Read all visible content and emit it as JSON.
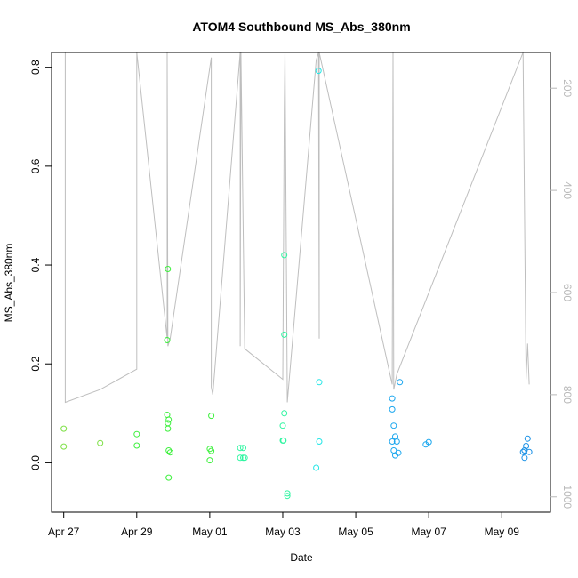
{
  "chart_data": {
    "type": "scatter",
    "title": "ATOM4 Southbound MS_Abs_380nm",
    "xlabel": "Date",
    "ylabel": "MS_Abs_380nm",
    "x_ticks": [
      "Apr 27",
      "Apr 29",
      "May 01",
      "May 03",
      "May 05",
      "May 07",
      "May 09"
    ],
    "y_ticks": [
      "0.0",
      "0.2",
      "0.4",
      "0.6",
      "0.8"
    ],
    "y2_ticks": [
      "200",
      "400",
      "600",
      "800",
      "1000"
    ],
    "xlim": [
      "2016-04-26 16:00",
      "2016-05-10 08:00"
    ],
    "ylim": [
      -0.1,
      0.83
    ],
    "y2lim": [
      1030,
      130
    ],
    "y2_reversed": true,
    "grid": false,
    "legend": "none",
    "colors": {
      "altitude_line": "#bebebe",
      "right_axis_text": "#b8b8b8",
      "point_palette": [
        "#7de045",
        "#3ef03e",
        "#2ef5a0",
        "#22e6e6",
        "#1aa6ee",
        "#1890e6"
      ]
    },
    "series": [
      {
        "values": [
          {
            "x": "2016-04-27 00:00",
            "y": 0.069
          },
          {
            "x": "2016-04-27 00:00",
            "y": 0.033
          },
          {
            "x": "2016-04-28 00:00",
            "y": 0.04
          },
          {
            "x": "2016-04-29 00:00",
            "y": 0.058
          },
          {
            "x": "2016-04-29 00:00",
            "y": 0.035
          },
          {
            "x": "2016-04-29 20:00",
            "y": 0.097
          },
          {
            "x": "2016-04-29 21:00",
            "y": 0.087
          },
          {
            "x": "2016-04-29 20:30",
            "y": 0.08
          },
          {
            "x": "2016-04-29 20:30",
            "y": 0.069
          },
          {
            "x": "2016-04-29 21:00",
            "y": 0.025
          },
          {
            "x": "2016-04-29 22:00",
            "y": 0.021
          },
          {
            "x": "2016-04-29 21:00",
            "y": -0.03
          },
          {
            "x": "2016-04-29 20:30",
            "y": 0.392
          },
          {
            "x": "2016-04-29 20:00",
            "y": 0.248
          },
          {
            "x": "2016-05-01 01:00",
            "y": 0.095
          },
          {
            "x": "2016-05-01 00:00",
            "y": 0.028
          },
          {
            "x": "2016-05-01 01:00",
            "y": 0.024
          },
          {
            "x": "2016-05-01 00:00",
            "y": 0.005
          },
          {
            "x": "2016-05-01 20:00",
            "y": 0.03
          },
          {
            "x": "2016-05-01 22:00",
            "y": 0.03
          },
          {
            "x": "2016-05-01 20:00",
            "y": 0.01
          },
          {
            "x": "2016-05-01 22:00",
            "y": 0.01
          },
          {
            "x": "2016-05-01 23:00",
            "y": 0.01
          },
          {
            "x": "2016-05-03 00:00",
            "y": 0.075
          },
          {
            "x": "2016-05-03 01:00",
            "y": 0.1
          },
          {
            "x": "2016-05-03 00:00",
            "y": 0.045
          },
          {
            "x": "2016-05-03 00:30",
            "y": 0.045
          },
          {
            "x": "2016-05-03 01:00",
            "y": 0.42
          },
          {
            "x": "2016-05-03 01:00",
            "y": 0.259
          },
          {
            "x": "2016-05-03 03:00",
            "y": -0.062
          },
          {
            "x": "2016-05-03 03:00",
            "y": -0.067
          },
          {
            "x": "2016-05-03 22:00",
            "y": -0.01
          },
          {
            "x": "2016-05-03 23:30",
            "y": 0.793
          },
          {
            "x": "2016-05-04 00:00",
            "y": 0.043
          },
          {
            "x": "2016-05-04 00:00",
            "y": 0.163
          },
          {
            "x": "2016-05-06 00:00",
            "y": 0.13
          },
          {
            "x": "2016-05-06 00:00",
            "y": 0.108
          },
          {
            "x": "2016-05-06 01:00",
            "y": 0.075
          },
          {
            "x": "2016-05-06 02:00",
            "y": 0.053
          },
          {
            "x": "2016-05-06 00:00",
            "y": 0.043
          },
          {
            "x": "2016-05-06 03:00",
            "y": 0.043
          },
          {
            "x": "2016-05-06 01:00",
            "y": 0.025
          },
          {
            "x": "2016-05-06 04:00",
            "y": 0.02
          },
          {
            "x": "2016-05-06 02:00",
            "y": 0.015
          },
          {
            "x": "2016-05-06 05:00",
            "y": 0.163
          },
          {
            "x": "2016-05-06 22:00",
            "y": 0.037
          },
          {
            "x": "2016-05-07 00:00",
            "y": 0.042
          },
          {
            "x": "2016-05-09 14:00",
            "y": 0.022
          },
          {
            "x": "2016-05-09 15:00",
            "y": 0.025
          },
          {
            "x": "2016-05-09 16:00",
            "y": 0.034
          },
          {
            "x": "2016-05-09 17:00",
            "y": 0.049
          },
          {
            "x": "2016-05-09 15:00",
            "y": 0.01
          },
          {
            "x": "2016-05-09 18:00",
            "y": 0.022
          }
        ]
      }
    ],
    "altitude_line": [
      {
        "x": "2016-04-27 01:00",
        "y2": 130
      },
      {
        "x": "2016-04-27 01:00",
        "y2": 815
      },
      {
        "x": "2016-04-28 00:00",
        "y2": 790
      },
      {
        "x": "2016-04-29 00:00",
        "y2": 750
      },
      {
        "x": "2016-04-29 00:00",
        "y2": 130
      },
      {
        "x": "2016-04-29 20:00",
        "y2": 690
      },
      {
        "x": "2016-04-29 20:00",
        "y2": 130
      },
      {
        "x": "2016-04-29 20:30",
        "y2": 705
      },
      {
        "x": "2016-04-29 22:00",
        "y2": 690
      },
      {
        "x": "2016-05-01 01:00",
        "y2": 140
      },
      {
        "x": "2016-05-01 01:00",
        "y2": 785
      },
      {
        "x": "2016-05-01 02:00",
        "y2": 800
      },
      {
        "x": "2016-05-01 20:00",
        "y2": 130
      },
      {
        "x": "2016-05-01 20:00",
        "y2": 705
      },
      {
        "x": "2016-05-01 20:30",
        "y2": 130
      },
      {
        "x": "2016-05-01 23:00",
        "y2": 710
      },
      {
        "x": "2016-05-03 00:00",
        "y2": 770
      },
      {
        "x": "2016-05-03 01:00",
        "y2": 240
      },
      {
        "x": "2016-05-03 01:30",
        "y2": 130
      },
      {
        "x": "2016-05-03 03:00",
        "y2": 815
      },
      {
        "x": "2016-05-03 22:00",
        "y2": 145
      },
      {
        "x": "2016-05-03 23:30",
        "y2": 130
      },
      {
        "x": "2016-05-04 00:00",
        "y2": 690
      },
      {
        "x": "2016-05-04 00:00",
        "y2": 130
      },
      {
        "x": "2016-05-06 00:00",
        "y2": 780
      },
      {
        "x": "2016-05-06 00:30",
        "y2": 130
      },
      {
        "x": "2016-05-06 01:00",
        "y2": 790
      },
      {
        "x": "2016-05-06 03:00",
        "y2": 760
      },
      {
        "x": "2016-05-09 14:00",
        "y2": 130
      },
      {
        "x": "2016-05-09 16:00",
        "y2": 770
      },
      {
        "x": "2016-05-09 17:00",
        "y2": 700
      },
      {
        "x": "2016-05-09 18:00",
        "y2": 780
      }
    ]
  }
}
